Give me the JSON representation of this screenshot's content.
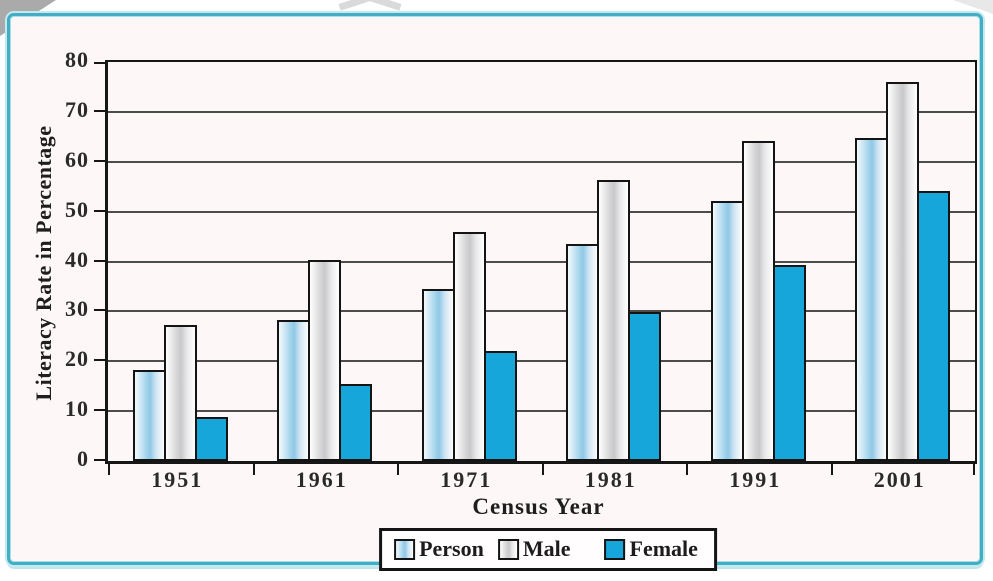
{
  "chart_data": {
    "type": "bar",
    "title": "",
    "xlabel": "Census Year",
    "ylabel": "Literacy Rate in Percentage",
    "categories": [
      "1951",
      "1961",
      "1971",
      "1981",
      "1991",
      "2001"
    ],
    "series": [
      {
        "name": "Person",
        "fill": "person",
        "values": [
          18.3,
          28.3,
          34.5,
          43.6,
          52.2,
          64.8
        ]
      },
      {
        "name": "Male",
        "fill": "male",
        "values": [
          27.2,
          40.4,
          46.0,
          56.4,
          64.1,
          75.9
        ]
      },
      {
        "name": "Female",
        "fill": "female",
        "values": [
          8.9,
          15.4,
          22.0,
          29.8,
          39.3,
          54.2
        ]
      }
    ],
    "ylim": [
      0,
      80
    ],
    "yticks": [
      0,
      10,
      20,
      30,
      40,
      50,
      60,
      70,
      80
    ],
    "grid": "horizontal",
    "legend_position": "bottom-center",
    "legend_entries": [
      "Person",
      "Male",
      "Female"
    ]
  },
  "colors": {
    "frame_border": "#41aec4",
    "frame_background": "#fdf8f7",
    "axis": "#161616",
    "gridline": "#4c4c4c",
    "text": "#2a2a2a",
    "person_fill_mid": "#8ec8e6",
    "male_fill_mid": "#c9c9cc",
    "female_fill": "#17a6da"
  }
}
